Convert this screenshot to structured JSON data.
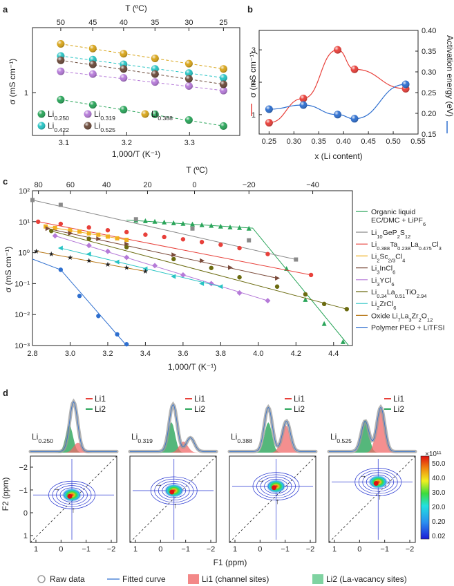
{
  "panel_a": {
    "letter": "a",
    "top_axis_label": "T (ºC)",
    "top_ticks": [
      "50",
      "45",
      "40",
      "35",
      "30",
      "25"
    ],
    "bottom_ticks": [
      "3.1",
      "3.2",
      "3.3"
    ],
    "xlabel": "1,000/T (K⁻¹)",
    "ylabel": "σ (mS cm⁻¹)",
    "ytick": "1",
    "legend": [
      "Li0.250",
      "Li0.319",
      "Li0.388",
      "Li0.422",
      "Li0.525"
    ]
  },
  "panel_b": {
    "letter": "b",
    "left_ticks": [
      "1",
      "2",
      "3"
    ],
    "right_ticks": [
      "0.15",
      "0.20",
      "0.25",
      "0.30",
      "0.35",
      "0.40"
    ],
    "x_ticks": [
      "0.25",
      "0.30",
      "0.35",
      "0.40",
      "0.45",
      "0.50",
      "0.55"
    ],
    "xlabel": "x (Li content)",
    "ylabel_left": "σ (mS cm⁻¹)",
    "ylabel_right": "Activation energy (eV)"
  },
  "panel_c": {
    "letter": "c",
    "top_axis_label": "T (ºC)",
    "top_ticks": [
      "80",
      "60",
      "40",
      "20",
      "0",
      "−20",
      "−40"
    ],
    "bottom_ticks": [
      "2.8",
      "3.0",
      "3.2",
      "3.4",
      "3.6",
      "3.8",
      "4.0",
      "4.2",
      "4.4"
    ],
    "xlabel": "1,000/T (K⁻¹)",
    "ylabel": "σ (mS cm⁻¹)",
    "y_ticks": [
      "10⁻³",
      "10⁻²",
      "10⁻¹",
      "10⁰",
      "10¹",
      "10²"
    ],
    "legend": [
      "Organic liquid EC/DMC + LiPF6",
      "Li10GeP2S12",
      "Li0.388Ta0.238La0.475Cl3",
      "Li2Sc2/3Cl4",
      "Li3InCl6",
      "Li3YCl6",
      "Li0.34La0.51TiO2.94",
      "Li2ZrCl6",
      "Oxide Li7La3Zr2O12",
      "Polymer PEO + LiTFSI"
    ]
  },
  "panel_d": {
    "letter": "d",
    "samples": [
      "Li0.250",
      "Li0.319",
      "Li0.388",
      "Li0.525"
    ],
    "peak_labels": [
      "Li1",
      "Li2"
    ],
    "f1_label": "F1 (ppm)",
    "f2_label": "F2 (ppm)",
    "f_ticks": [
      "1",
      "0",
      "−1",
      "−2"
    ],
    "f2_ticks": [
      "−2",
      "−1",
      "0",
      "1"
    ],
    "colorbar_exponent": "×10¹¹",
    "colorbar_ticks": [
      "50.0",
      "40.0",
      "30.0",
      "20.0",
      "0.20",
      "0.02"
    ],
    "legend": [
      "Raw data",
      "Fitted curve",
      "Li1 (channel sites)",
      "Li2 (La-vacancy sites)"
    ]
  },
  "colors": {
    "green": "#2aa55a",
    "cyan": "#28c4c4",
    "purple": "#b57ad8",
    "brown": "#6b4a3a",
    "gold": "#d8a51a",
    "red": "#e8403a",
    "blue": "#2e6fcf"
  },
  "chart_data": [
    {
      "type": "scatter",
      "panel": "a",
      "x": [
        3.095,
        3.146,
        3.195,
        3.245,
        3.299,
        3.354
      ],
      "x_top_celsius": [
        50,
        45,
        40,
        35,
        30,
        25
      ],
      "ylim": [
        0.5,
        7
      ],
      "log_y": true,
      "series": [
        {
          "name": "Li0.250",
          "values": [
            1.2,
            1.06,
            0.94,
            0.84,
            0.73,
            0.63
          ]
        },
        {
          "name": "Li0.319",
          "values": [
            2.4,
            2.25,
            2.05,
            1.85,
            1.68,
            1.5
          ]
        },
        {
          "name": "Li0.388",
          "values": [
            4.7,
            4.2,
            3.7,
            3.3,
            2.9,
            2.55
          ]
        },
        {
          "name": "Li0.422",
          "values": [
            3.5,
            3.2,
            2.85,
            2.55,
            2.3,
            2.05
          ]
        },
        {
          "name": "Li0.525",
          "values": [
            3.15,
            2.85,
            2.55,
            2.25,
            2.0,
            1.75
          ]
        }
      ]
    },
    {
      "type": "line",
      "panel": "b",
      "x": [
        0.25,
        0.319,
        0.388,
        0.422,
        0.525
      ],
      "series": [
        {
          "name": "σ (mS cm⁻¹)",
          "values": [
            0.75,
            1.5,
            3.0,
            2.4,
            1.8
          ]
        },
        {
          "name": "Activation energy (eV)",
          "values": [
            0.21,
            0.22,
            0.197,
            0.187,
            0.27
          ]
        }
      ]
    },
    {
      "type": "scatter",
      "panel": "c",
      "log_y": true,
      "xlim": [
        2.8,
        4.5
      ],
      "ylim": [
        0.001,
        100
      ],
      "series": [
        {
          "name": "Organic liquid EC/DMC + LiPF6",
          "x": [
            3.35,
            3.4,
            3.45,
            3.5,
            3.55,
            3.6,
            3.65,
            3.7,
            3.75,
            3.8,
            3.85,
            3.9,
            3.95,
            4.15,
            4.25,
            4.35,
            4.45
          ],
          "values": [
            11,
            10.5,
            10,
            9.5,
            9,
            8.6,
            8.2,
            7.8,
            7.4,
            7,
            6.6,
            6.3,
            6,
            0.3,
            0.03,
            0.005,
            0.0013
          ]
        },
        {
          "name": "Li10GeP2S12",
          "x": [
            2.8,
            2.95,
            3.35,
            3.65,
            3.95,
            4.2
          ],
          "values": [
            50,
            35,
            12,
            6,
            2.5,
            0.6
          ]
        },
        {
          "name": "Li0.388Ta0.238La0.475Cl3",
          "x": [
            2.83,
            2.95,
            3.1,
            3.2,
            3.3,
            3.4,
            3.5,
            3.6,
            3.7,
            3.8,
            3.9,
            4.05,
            4.28
          ],
          "values": [
            10,
            8.5,
            6.5,
            5.3,
            4.6,
            3.8,
            3.2,
            2.7,
            2.2,
            1.8,
            1.4,
            0.9,
            0.19
          ]
        },
        {
          "name": "Li2Sc2/3Cl4",
          "x": [
            2.87,
            2.92,
            3.0,
            3.05,
            3.1,
            3.15,
            3.2,
            3.25,
            3.3
          ],
          "values": [
            7,
            6.3,
            5.3,
            4.8,
            4.2,
            3.8,
            3.3,
            2.9,
            2.6
          ]
        },
        {
          "name": "Li3InCl6",
          "x": [
            2.88,
            3.0,
            3.15,
            3.3,
            3.55,
            3.7,
            3.85,
            4.1
          ],
          "values": [
            6,
            4.2,
            2.8,
            1.9,
            0.85,
            0.55,
            0.33,
            0.15
          ]
        },
        {
          "name": "Li3YCl6",
          "x": [
            2.92,
            3.1,
            3.2,
            3.3,
            3.45,
            3.6,
            3.75,
            3.9,
            4.05
          ],
          "values": [
            3.5,
            1.7,
            1.1,
            0.7,
            0.38,
            0.19,
            0.1,
            0.05,
            0.028
          ]
        },
        {
          "name": "Li0.34La0.51TiO2.94",
          "x": [
            2.9,
            3.1,
            3.3,
            3.55,
            3.75,
            3.9,
            4.1,
            4.25,
            4.35,
            4.47
          ],
          "values": [
            5,
            2.8,
            1.5,
            0.62,
            0.32,
            0.16,
            0.08,
            0.045,
            0.022,
            0.015
          ]
        },
        {
          "name": "Li2ZrCl6",
          "x": [
            2.95,
            3.1,
            3.25,
            3.4,
            3.55,
            3.7,
            3.8
          ],
          "values": [
            1.4,
            0.9,
            0.5,
            0.3,
            0.17,
            0.1,
            0.08
          ]
        },
        {
          "name": "Oxide Li7La3Zr2O12",
          "x": [
            2.82,
            2.9,
            3.0,
            3.1,
            3.2,
            3.3,
            3.4
          ],
          "values": [
            1.1,
            0.9,
            0.7,
            0.55,
            0.42,
            0.33,
            0.25
          ]
        },
        {
          "name": "Polymer PEO + LiTFSI",
          "x": [
            2.95,
            3.05,
            3.15,
            3.25,
            3.3
          ],
          "values": [
            0.28,
            0.04,
            0.009,
            0.0023,
            0.0011
          ]
        }
      ]
    }
  ]
}
